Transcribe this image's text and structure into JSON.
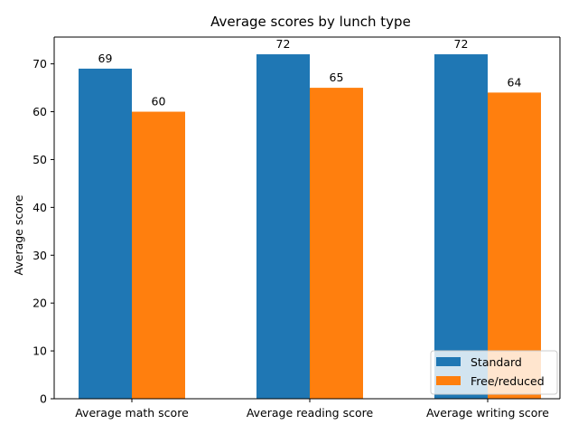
{
  "chart_data": {
    "type": "bar",
    "title": "Average scores by lunch type",
    "xlabel": "",
    "ylabel": "Average score",
    "categories": [
      "Average math score",
      "Average reading score",
      "Average writing score"
    ],
    "series": [
      {
        "name": "Standard",
        "values": [
          69,
          72,
          72
        ],
        "labels": [
          "69",
          "72",
          "72"
        ],
        "color": "#1f77b4"
      },
      {
        "name": "Free/reduced",
        "values": [
          60,
          65,
          64
        ],
        "labels": [
          "60",
          "65",
          "64"
        ],
        "color": "#ff7f0e"
      }
    ],
    "ylim": [
      0,
      75.6
    ],
    "yticks": [
      0,
      10,
      20,
      30,
      40,
      50,
      60,
      70
    ],
    "ytick_labels": [
      "0",
      "10",
      "20",
      "30",
      "40",
      "50",
      "60",
      "70"
    ],
    "grid": false,
    "legend_position": "lower-right"
  }
}
